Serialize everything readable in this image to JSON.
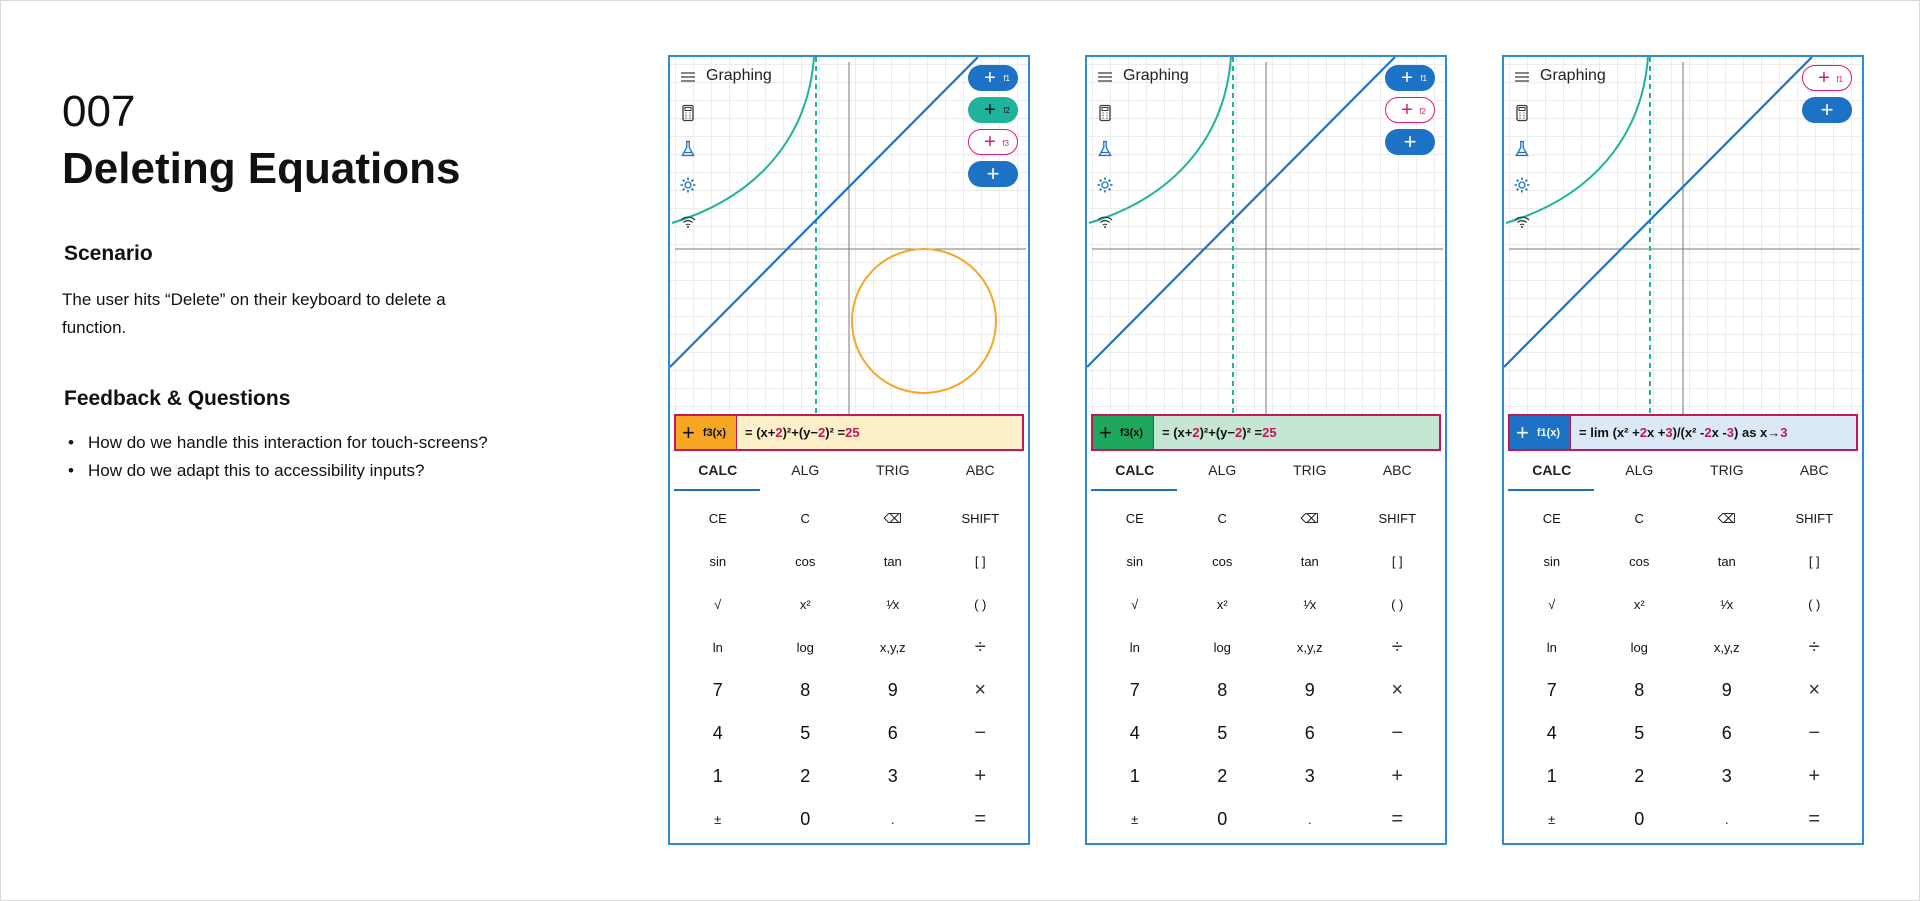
{
  "slide": {
    "number": "007",
    "title": "Deleting Equations",
    "scenario_heading": "Scenario",
    "scenario_text": "The user hits “Delete” on their keyboard to delete a function.",
    "feedback_heading": "Feedback & Questions",
    "questions": [
      "How do we handle this interaction for touch-screens?",
      "How do we adapt this to accessibility inputs?"
    ]
  },
  "app_title": "Graphing",
  "tabs": [
    "CALC",
    "ALG",
    "TRIG",
    "ABC"
  ],
  "keys": [
    "CE",
    "C",
    "⌫",
    "SHIFT",
    "sin",
    "cos",
    "tan",
    "[ ]",
    "√",
    "x²",
    "¹⁄x",
    "( )",
    "ln",
    "log",
    "x,y,z",
    "÷",
    "7",
    "8",
    "9",
    "×",
    "4",
    "5",
    "6",
    "−",
    "1",
    "2",
    "3",
    "+",
    "±",
    "0",
    ".",
    "="
  ],
  "icons": [
    "menu-icon",
    "calculator-icon",
    "flask-icon",
    "gear-icon",
    "accessibility-icon"
  ],
  "screens": [
    {
      "fn_buttons": [
        {
          "label": "f1",
          "style": "solid-blue"
        },
        {
          "label": "f2",
          "style": "solid-teal"
        },
        {
          "label": "f3",
          "style": "outline-pink"
        },
        {
          "label": "",
          "style": "solid-blue add"
        }
      ],
      "eq_tag": "f3(x)",
      "eq_tag_color": "#f5a623",
      "eq_bg": "#fdf0c8",
      "equation": "= (x+2)²+(y−2)² = 25"
    },
    {
      "fn_buttons": [
        {
          "label": "f1",
          "style": "solid-blue"
        },
        {
          "label": "f2",
          "style": "outline-pink"
        },
        {
          "label": "",
          "style": "solid-blue add"
        }
      ],
      "eq_tag": "f3(x)",
      "eq_tag_color": "#1fa85d",
      "eq_bg": "#c6e6d4",
      "equation": "= (x+2)²+(y−2)² = 25"
    },
    {
      "fn_buttons": [
        {
          "label": "f1",
          "style": "outline-pink"
        },
        {
          "label": "",
          "style": "solid-blue add"
        }
      ],
      "eq_tag": "f1(x)",
      "eq_tag_color": "#1d72c5",
      "eq_bg": "#dbe9f7",
      "equation": "= lim (x² + 2x + 3)/(x² - 2x - 3) as x → 3"
    }
  ],
  "colors": {
    "blue": "#1d72c5",
    "teal": "#1fb39c",
    "orange": "#f5a623",
    "pink": "#d81b7e"
  }
}
